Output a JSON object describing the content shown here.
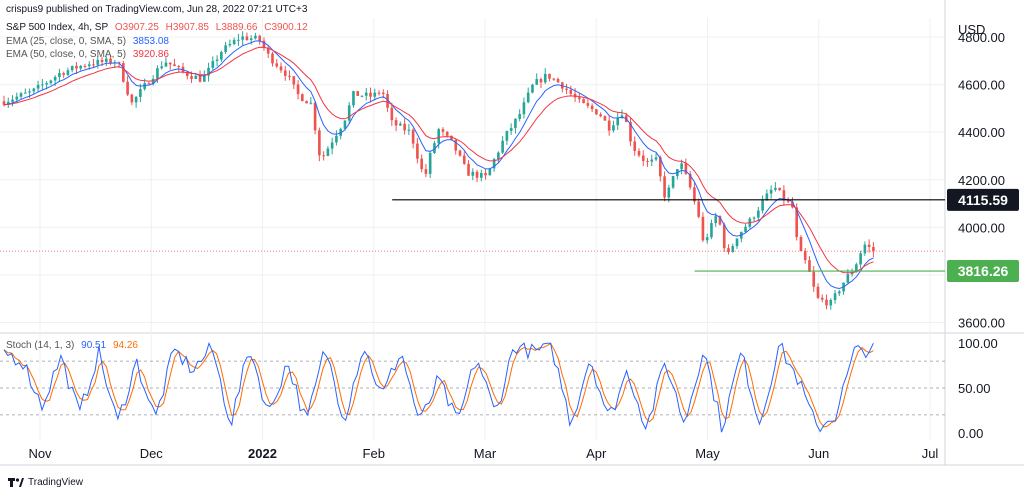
{
  "header": {
    "published": "crispus9 published on TradingView.com, Jun 28, 2022 07:21 UTC+3",
    "symbol": "S&P 500 Index, 4h, SP",
    "ohlc": {
      "o": "O3907.25",
      "h": "H3907.85",
      "l": "L3889.66",
      "c": "C3900.12"
    },
    "ema25_label": "EMA (25, close, 0, SMA, 5)",
    "ema25_value": "3853.08",
    "ema50_label": "EMA (50, close, 0, SMA, 5)",
    "ema50_value": "3920.86",
    "stoch_label": "Stoch (14, 1, 3)",
    "stoch_k": "90.51",
    "stoch_d": "94.26"
  },
  "footer": {
    "brand": "TradingView"
  },
  "colors": {
    "up": "#26a69a",
    "down": "#ef5350",
    "ema25": "#2962ff",
    "ema50": "#f23645",
    "stoch_k": "#2962ff",
    "stoch_d": "#ff6d00",
    "level_high": "#000000",
    "level_low": "#4caf50",
    "grid": "#eef0f3"
  },
  "chart_data": {
    "type": "candlestick",
    "currency": "USD",
    "price_axis": {
      "ticks": [
        "4800.00",
        "4600.00",
        "4400.00",
        "4200.00",
        "4000.00",
        "3800.00",
        "3600.00"
      ],
      "range": [
        3560,
        4880
      ]
    },
    "stoch_axis": {
      "ticks": [
        "100.00",
        "50.00",
        "0.00"
      ],
      "range": [
        -8,
        108
      ],
      "bands": [
        80,
        50,
        20
      ]
    },
    "time_axis": [
      "Nov",
      "Dec",
      "2022",
      "Feb",
      "Mar",
      "Apr",
      "May",
      "Jun",
      "Jul"
    ],
    "levels": [
      {
        "label": "4115.59",
        "value": 4115.59,
        "from": 0.415,
        "to": 1.0
      },
      {
        "label": "3816.26",
        "value": 3816.26,
        "from": 0.735,
        "to": 1.0
      }
    ],
    "last_price": 3900.12,
    "anchors": [
      [
        0.0,
        4530
      ],
      [
        0.03,
        4570
      ],
      [
        0.06,
        4650
      ],
      [
        0.09,
        4690
      ],
      [
        0.12,
        4700
      ],
      [
        0.135,
        4520
      ],
      [
        0.15,
        4600
      ],
      [
        0.17,
        4700
      ],
      [
        0.19,
        4650
      ],
      [
        0.21,
        4620
      ],
      [
        0.23,
        4740
      ],
      [
        0.25,
        4800
      ],
      [
        0.27,
        4790
      ],
      [
        0.28,
        4720
      ],
      [
        0.3,
        4640
      ],
      [
        0.31,
        4560
      ],
      [
        0.325,
        4520
      ],
      [
        0.335,
        4280
      ],
      [
        0.345,
        4350
      ],
      [
        0.36,
        4450
      ],
      [
        0.37,
        4560
      ],
      [
        0.39,
        4550
      ],
      [
        0.4,
        4580
      ],
      [
        0.41,
        4440
      ],
      [
        0.43,
        4400
      ],
      [
        0.445,
        4200
      ],
      [
        0.45,
        4290
      ],
      [
        0.46,
        4410
      ],
      [
        0.475,
        4350
      ],
      [
        0.49,
        4230
      ],
      [
        0.51,
        4210
      ],
      [
        0.53,
        4380
      ],
      [
        0.545,
        4470
      ],
      [
        0.56,
        4600
      ],
      [
        0.575,
        4640
      ],
      [
        0.59,
        4600
      ],
      [
        0.61,
        4520
      ],
      [
        0.63,
        4480
      ],
      [
        0.64,
        4420
      ],
      [
        0.655,
        4490
      ],
      [
        0.665,
        4340
      ],
      [
        0.68,
        4270
      ],
      [
        0.69,
        4280
      ],
      [
        0.7,
        4120
      ],
      [
        0.715,
        4280
      ],
      [
        0.725,
        4180
      ],
      [
        0.735,
        4050
      ],
      [
        0.74,
        3930
      ],
      [
        0.755,
        4060
      ],
      [
        0.765,
        3870
      ],
      [
        0.775,
        3960
      ],
      [
        0.79,
        4030
      ],
      [
        0.805,
        4120
      ],
      [
        0.815,
        4170
      ],
      [
        0.825,
        4120
      ],
      [
        0.835,
        4080
      ],
      [
        0.84,
        3910
      ],
      [
        0.85,
        3840
      ],
      [
        0.86,
        3700
      ],
      [
        0.875,
        3680
      ],
      [
        0.89,
        3780
      ],
      [
        0.9,
        3830
      ],
      [
        0.91,
        3930
      ],
      [
        0.92,
        3900
      ]
    ],
    "stoch_anchors": [
      [
        0.0,
        90
      ],
      [
        0.02,
        80
      ],
      [
        0.04,
        30
      ],
      [
        0.06,
        85
      ],
      [
        0.08,
        20
      ],
      [
        0.1,
        90
      ],
      [
        0.12,
        10
      ],
      [
        0.14,
        80
      ],
      [
        0.16,
        15
      ],
      [
        0.18,
        92
      ],
      [
        0.2,
        70
      ],
      [
        0.22,
        95
      ],
      [
        0.24,
        10
      ],
      [
        0.26,
        96
      ],
      [
        0.28,
        20
      ],
      [
        0.3,
        80
      ],
      [
        0.32,
        10
      ],
      [
        0.34,
        95
      ],
      [
        0.36,
        15
      ],
      [
        0.38,
        98
      ],
      [
        0.4,
        40
      ],
      [
        0.42,
        92
      ],
      [
        0.44,
        10
      ],
      [
        0.46,
        60
      ],
      [
        0.48,
        10
      ],
      [
        0.5,
        85
      ],
      [
        0.52,
        20
      ],
      [
        0.54,
        98
      ],
      [
        0.56,
        90
      ],
      [
        0.58,
        95
      ],
      [
        0.6,
        10
      ],
      [
        0.62,
        85
      ],
      [
        0.64,
        15
      ],
      [
        0.66,
        70
      ],
      [
        0.68,
        5
      ],
      [
        0.7,
        80
      ],
      [
        0.72,
        10
      ],
      [
        0.74,
        95
      ],
      [
        0.76,
        5
      ],
      [
        0.78,
        90
      ],
      [
        0.8,
        10
      ],
      [
        0.82,
        98
      ],
      [
        0.84,
        60
      ],
      [
        0.86,
        5
      ],
      [
        0.88,
        20
      ],
      [
        0.9,
        90
      ],
      [
        0.92,
        95
      ]
    ]
  }
}
